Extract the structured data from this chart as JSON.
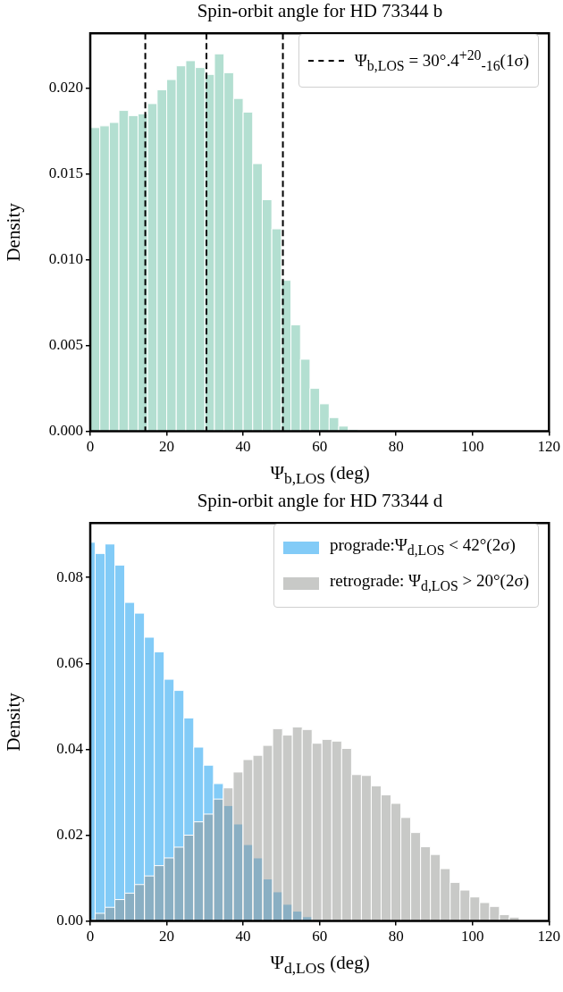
{
  "chart_data": [
    {
      "type": "histogram",
      "title": "Spin-orbit angle for HD 73344 b",
      "xlabel": "Ψ$_{b,LOS}$ (deg)",
      "ylabel": "Density",
      "bins": [
        0,
        2.5,
        5,
        7.5,
        10,
        12.5,
        15,
        17.5,
        20,
        22.5,
        25,
        27.5,
        30,
        32.5,
        35,
        37.5,
        40,
        42.5,
        45,
        47.5,
        50,
        52.5,
        55,
        57.5,
        60,
        62.5,
        65,
        67.5,
        70
      ],
      "values": [
        0.0177,
        0.0178,
        0.018,
        0.0187,
        0.0184,
        0.0185,
        0.0191,
        0.0199,
        0.0205,
        0.0213,
        0.0216,
        0.0212,
        0.0208,
        0.022,
        0.0209,
        0.0194,
        0.0186,
        0.0156,
        0.0135,
        0.0118,
        0.0088,
        0.0062,
        0.0042,
        0.0025,
        0.0016,
        0.0008,
        0.0003,
        0.0001
      ],
      "color": "#b3dfd1",
      "xlim": [
        0,
        120
      ],
      "xticks": [
        0,
        20,
        40,
        60,
        80,
        100,
        120
      ],
      "ylim": [
        0,
        0.0232
      ],
      "yticks": [
        {
          "value": 0,
          "label": "0.000"
        },
        {
          "value": 0.005,
          "label": "0.005"
        },
        {
          "value": 0.01,
          "label": "0.010"
        },
        {
          "value": 0.015,
          "label": "0.015"
        },
        {
          "value": 0.02,
          "label": "0.020"
        }
      ],
      "ref_lines": [
        {
          "axis": "x",
          "value": 30.4,
          "label": "Ψ$_{b,LOS}$ = 30°.4$^{+20}$$_{-16}$(1σ)",
          "color": "#000000",
          "line_style": "dashed"
        },
        {
          "axis": "x",
          "value": 14.4,
          "color": "#000000",
          "line_style": "dashed"
        },
        {
          "axis": "x",
          "value": 50.4,
          "color": "#000000",
          "line_style": "dashed"
        }
      ],
      "legend": "top right",
      "grid": false
    },
    {
      "type": "histogram",
      "title": "Spin-orbit angle for HD 73344 d",
      "xlabel": "Ψ$_{d,LOS}$ (deg)",
      "ylabel": "Density",
      "bins": [
        0,
        1.28,
        3.86,
        6.44,
        9.02,
        11.6,
        14.18,
        16.76,
        19.34,
        21.92,
        24.5,
        27.08,
        29.66,
        32.24,
        34.82,
        37.4,
        39.98,
        42.56,
        45.14,
        47.72,
        50.3,
        52.88,
        55.46,
        58.04,
        60.62,
        63.2,
        65.78,
        68.36,
        70.94,
        73.52,
        76.1,
        78.68,
        81.26,
        83.84,
        86.42,
        89.0,
        91.58,
        94.16,
        96.74,
        99.32,
        101.9,
        104.48,
        107.06,
        109.64,
        112.22,
        114.8
      ],
      "series": [
        {
          "name": "prograde:Ψ$_{d,LOS}$ < 42°(2σ)",
          "color": "#82cbf7",
          "values": [
            0.0882,
            0.0856,
            0.0878,
            0.0829,
            0.0742,
            0.0717,
            0.0661,
            0.0627,
            0.0563,
            0.0537,
            0.0473,
            0.0405,
            0.0363,
            0.032,
            0.0269,
            0.0226,
            0.0178,
            0.0147,
            0.0098,
            0.0068,
            0.0039,
            0.0023,
            0.001,
            0.0002,
            null,
            null,
            null,
            null,
            null,
            null,
            null,
            null,
            null,
            null,
            null,
            null,
            null,
            null,
            null,
            null,
            null,
            null,
            null,
            null,
            null
          ]
        },
        {
          "name": "retrograde: Ψ$_{d,LOS}$ > 20°(2σ)",
          "color": "#c8c9c7",
          "values": [
            0.0003,
            0.0018,
            0.0032,
            0.005,
            0.0065,
            0.0085,
            0.0105,
            0.0129,
            0.0147,
            0.0172,
            0.02,
            0.0231,
            0.0249,
            0.0284,
            0.031,
            0.0347,
            0.0376,
            0.0386,
            0.0409,
            0.0448,
            0.0433,
            0.0452,
            0.0446,
            0.0414,
            0.0423,
            0.0419,
            0.0402,
            0.0341,
            0.0339,
            0.0315,
            0.0294,
            0.0274,
            0.0241,
            0.0206,
            0.0173,
            0.0155,
            0.0122,
            0.009,
            0.0072,
            0.0056,
            0.0043,
            0.0034,
            0.0015,
            0.0009,
            0.0001
          ]
        }
      ],
      "xlim": [
        0,
        120
      ],
      "xticks": [
        0,
        20,
        40,
        60,
        80,
        100,
        120
      ],
      "ylim": [
        0,
        0.0927
      ],
      "yticks": [
        {
          "value": 0,
          "label": "0.00"
        },
        {
          "value": 0.02,
          "label": "0.02"
        },
        {
          "value": 0.04,
          "label": "0.04"
        },
        {
          "value": 0.06,
          "label": "0.06"
        },
        {
          "value": 0.08,
          "label": "0.08"
        }
      ],
      "legend": "top right",
      "grid": false
    }
  ]
}
